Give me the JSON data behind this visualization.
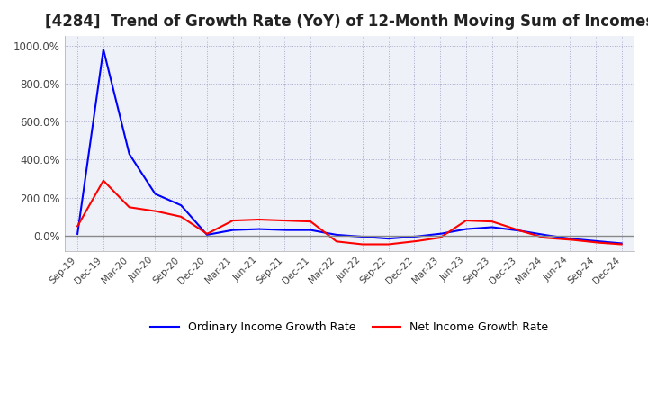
{
  "title": "[4284]  Trend of Growth Rate (YoY) of 12-Month Moving Sum of Incomes",
  "title_fontsize": 12,
  "ylim": [
    -80,
    1050
  ],
  "yticks": [
    0,
    200,
    400,
    600,
    800,
    1000
  ],
  "ytick_labels": [
    "0.0%",
    "200.0%",
    "400.0%",
    "600.0%",
    "800.0%",
    "1000.0%"
  ],
  "background_color": "#ffffff",
  "plot_bg_color": "#eef2f8",
  "grid_color": "#aaaacc",
  "legend_labels": [
    "Ordinary Income Growth Rate",
    "Net Income Growth Rate"
  ],
  "legend_colors": [
    "#0000ff",
    "#ff0000"
  ],
  "x_labels": [
    "Sep-19",
    "Dec-19",
    "Mar-20",
    "Jun-20",
    "Sep-20",
    "Dec-20",
    "Mar-21",
    "Jun-21",
    "Sep-21",
    "Dec-21",
    "Mar-22",
    "Jun-22",
    "Sep-22",
    "Dec-22",
    "Mar-23",
    "Jun-23",
    "Sep-23",
    "Dec-23",
    "Mar-24",
    "Jun-24",
    "Sep-24",
    "Dec-24"
  ],
  "ordinary_income": [
    10,
    980,
    430,
    220,
    160,
    5,
    30,
    35,
    30,
    30,
    5,
    -5,
    -15,
    -5,
    10,
    35,
    45,
    28,
    5,
    -15,
    -28,
    -40
  ],
  "net_income": [
    50,
    290,
    150,
    130,
    100,
    10,
    80,
    85,
    80,
    75,
    -30,
    -45,
    -45,
    -30,
    -10,
    80,
    75,
    30,
    -10,
    -20,
    -35,
    -45
  ]
}
